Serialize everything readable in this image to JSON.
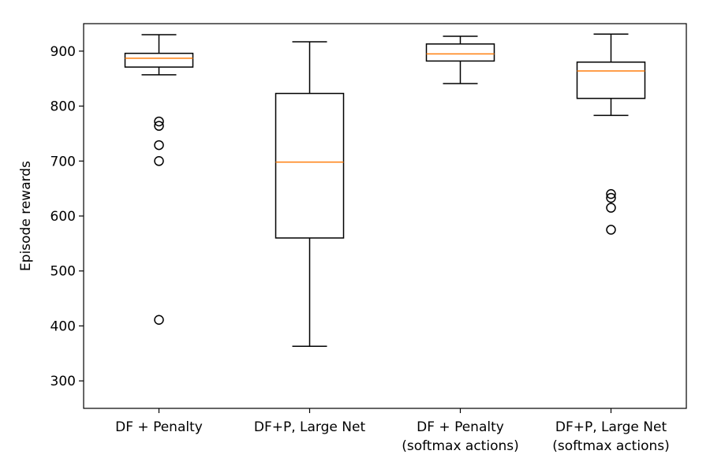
{
  "chart_data": {
    "type": "box",
    "ylabel": "Episode rewards",
    "ylim": [
      250,
      950
    ],
    "yticks": [
      300,
      400,
      500,
      600,
      700,
      800,
      900
    ],
    "grid": false,
    "colors": {
      "box": "#000000",
      "median": "#ff7f0e",
      "flier": "#000000"
    },
    "categories": [
      [
        "DF + Penalty"
      ],
      [
        "DF+P, Large Net"
      ],
      [
        "DF + Penalty",
        "(softmax actions)"
      ],
      [
        "DF+P, Large Net",
        "(softmax actions)"
      ]
    ],
    "boxes": [
      {
        "whisker_low": 857,
        "q1": 871,
        "median": 887,
        "q3": 896,
        "whisker_high": 930,
        "fliers": [
          772,
          764,
          729,
          700,
          411
        ]
      },
      {
        "whisker_low": 363,
        "q1": 560,
        "median": 698,
        "q3": 823,
        "whisker_high": 917,
        "fliers": []
      },
      {
        "whisker_low": 841,
        "q1": 882,
        "median": 895,
        "q3": 913,
        "whisker_high": 927,
        "fliers": []
      },
      {
        "whisker_low": 783,
        "q1": 814,
        "median": 864,
        "q3": 880,
        "whisker_high": 931,
        "fliers": [
          640,
          633,
          615,
          575
        ]
      }
    ]
  }
}
